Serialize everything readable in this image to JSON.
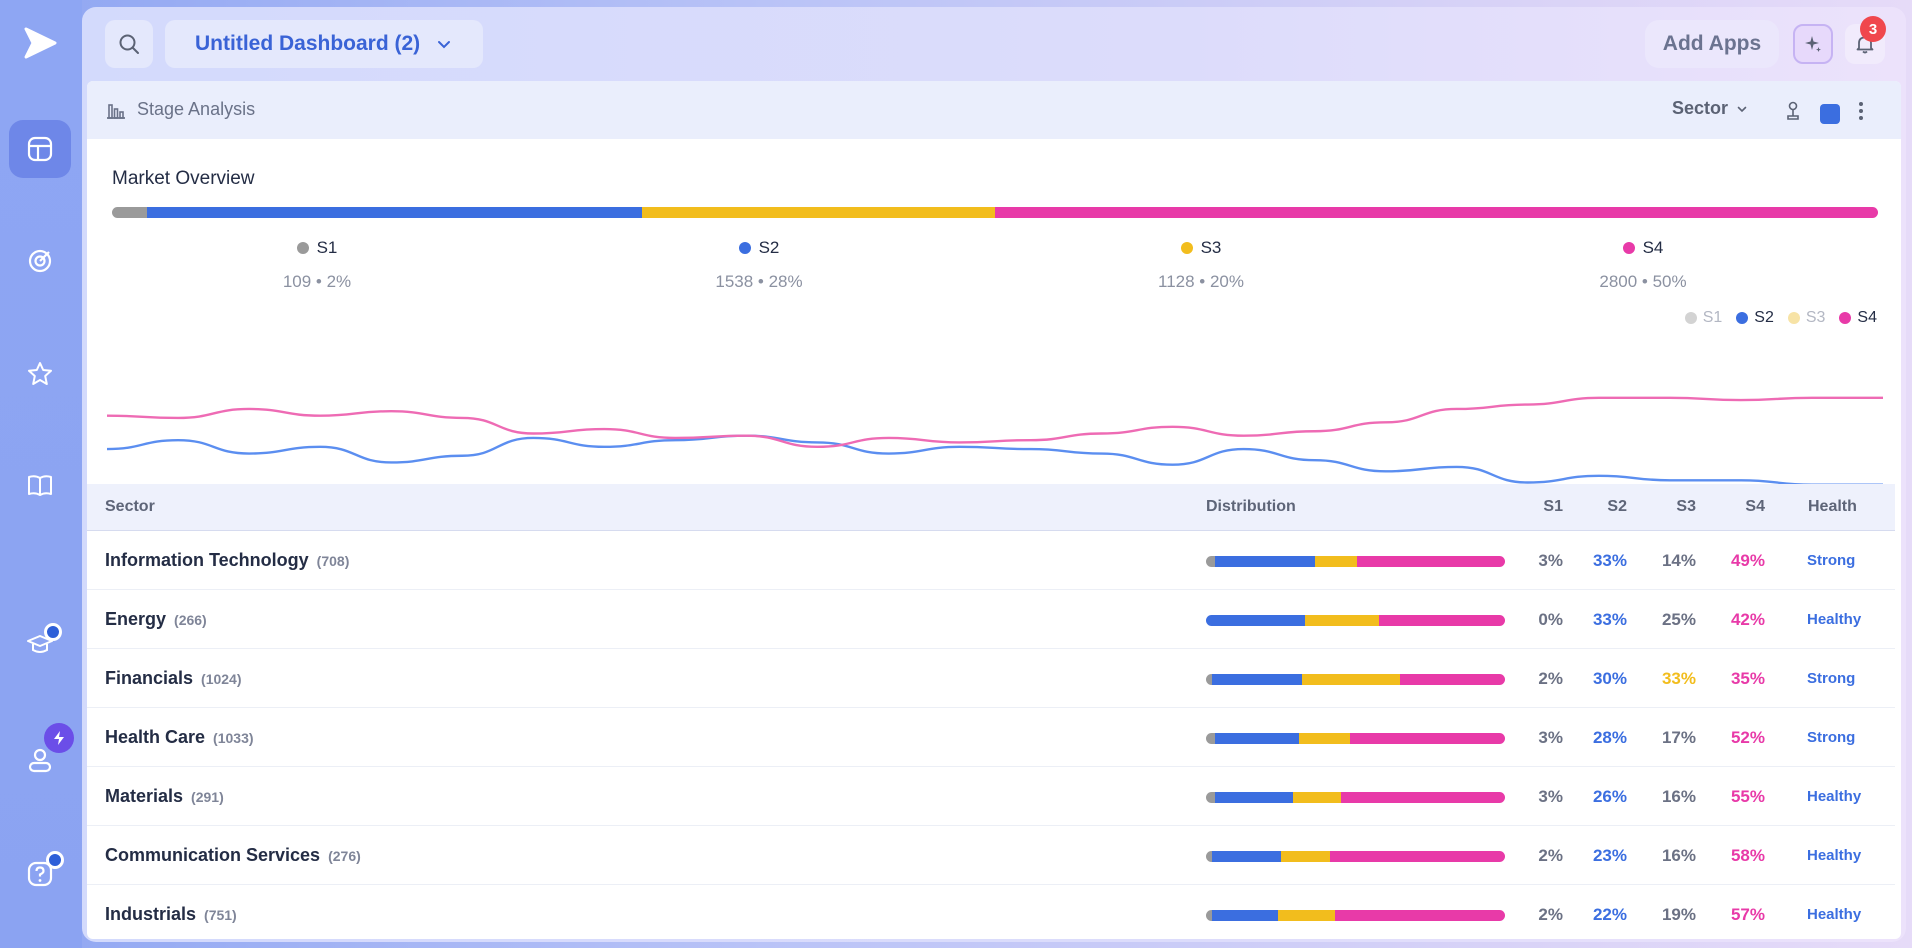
{
  "header": {
    "dashboard_title": "Untitled Dashboard (2)",
    "add_apps_label": "Add Apps",
    "notification_count": "3"
  },
  "card": {
    "title": "Stage Analysis",
    "sector_select": "Sector",
    "overview_title": "Market Overview"
  },
  "colors": {
    "S1": "#9a9a9a",
    "S2": "#3b6ee0",
    "S3": "#f2bd1d",
    "S4": "#e83aa8"
  },
  "stages": [
    {
      "name": "S1",
      "value": "109 • 2%",
      "pct": 2
    },
    {
      "name": "S2",
      "value": "1538 • 28%",
      "pct": 28
    },
    {
      "name": "S3",
      "value": "1128 • 20%",
      "pct": 20
    },
    {
      "name": "S4",
      "value": "2800 • 50%",
      "pct": 50
    }
  ],
  "chart_data": {
    "type": "line",
    "legend": [
      "S1",
      "S2",
      "S3",
      "S4"
    ],
    "legend_placement": "top-right",
    "active_series": [
      "S2",
      "S4"
    ],
    "series": [
      {
        "name": "S2",
        "values": [
          48,
          52,
          46,
          49,
          42,
          45,
          53,
          49,
          52,
          54,
          51,
          46,
          49,
          48,
          46,
          41,
          48,
          43,
          38,
          40,
          33,
          36,
          34,
          34,
          32,
          32
        ]
      },
      {
        "name": "S4",
        "values": [
          63,
          62,
          66,
          63,
          65,
          62,
          55,
          57,
          53,
          54,
          49,
          53,
          51,
          52,
          55,
          58,
          54,
          56,
          60,
          66,
          68,
          71,
          71,
          70,
          71,
          71
        ]
      }
    ]
  },
  "table": {
    "headers": {
      "sector": "Sector",
      "distribution": "Distribution",
      "s1": "S1",
      "s2": "S2",
      "s3": "S3",
      "s4": "S4",
      "health": "Health"
    },
    "rows": [
      {
        "name": "Information Technology",
        "count": "(708)",
        "s1": "3%",
        "s2": "33%",
        "s3": "14%",
        "s4": "49%",
        "dist": [
          3,
          33,
          14,
          49
        ],
        "health": "Strong",
        "hi": "s4"
      },
      {
        "name": "Energy",
        "count": "(266)",
        "s1": "0%",
        "s2": "33%",
        "s3": "25%",
        "s4": "42%",
        "dist": [
          0,
          33,
          25,
          42
        ],
        "health": "Healthy",
        "hi": "s4"
      },
      {
        "name": "Financials",
        "count": "(1024)",
        "s1": "2%",
        "s2": "30%",
        "s3": "33%",
        "s4": "35%",
        "dist": [
          2,
          30,
          33,
          35
        ],
        "health": "Strong",
        "hi": "s3"
      },
      {
        "name": "Health Care",
        "count": "(1033)",
        "s1": "3%",
        "s2": "28%",
        "s3": "17%",
        "s4": "52%",
        "dist": [
          3,
          28,
          17,
          52
        ],
        "health": "Strong",
        "hi": "s4"
      },
      {
        "name": "Materials",
        "count": "(291)",
        "s1": "3%",
        "s2": "26%",
        "s3": "16%",
        "s4": "55%",
        "dist": [
          3,
          26,
          16,
          55
        ],
        "health": "Healthy",
        "hi": "s4"
      },
      {
        "name": "Communication Services",
        "count": "(276)",
        "s1": "2%",
        "s2": "23%",
        "s3": "16%",
        "s4": "58%",
        "dist": [
          2,
          23,
          16,
          58
        ],
        "health": "Healthy",
        "hi": "s4"
      },
      {
        "name": "Industrials",
        "count": "(751)",
        "s1": "2%",
        "s2": "22%",
        "s3": "19%",
        "s4": "57%",
        "dist": [
          2,
          22,
          19,
          57
        ],
        "health": "Healthy",
        "hi": "s4"
      }
    ]
  }
}
